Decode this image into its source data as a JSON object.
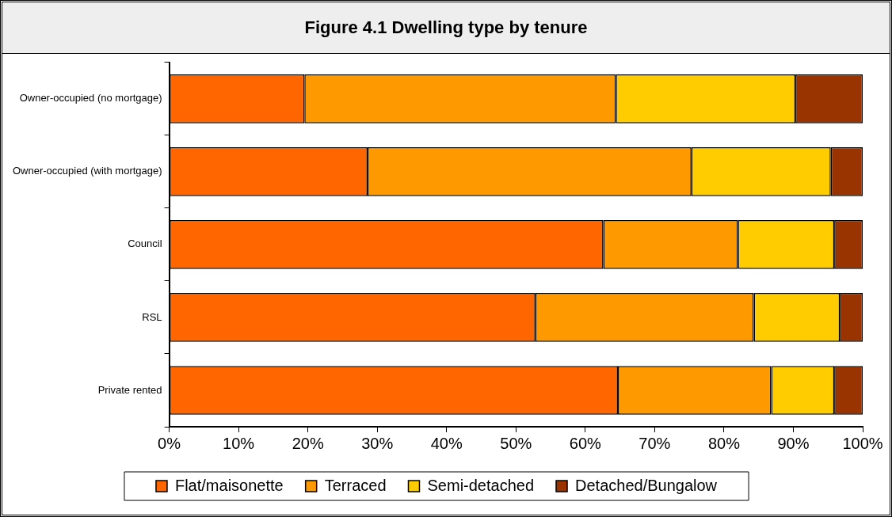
{
  "chart_data": {
    "type": "bar",
    "orientation": "horizontal",
    "stacked": true,
    "title": "Figure 4.1 Dwelling type by tenure",
    "categories": [
      "Owner-occupied (no mortgage)",
      "Owner-occupied (with mortgage)",
      "Council",
      "RSL",
      "Private rented"
    ],
    "series": [
      {
        "name": "Flat/maisonette",
        "color": "#ff6600",
        "values": [
          19.5,
          28.6,
          62.6,
          52.8,
          64.7
        ]
      },
      {
        "name": "Terraced",
        "color": "#ff9900",
        "values": [
          44.9,
          46.7,
          19.4,
          31.5,
          22.1
        ]
      },
      {
        "name": "Semi-detached",
        "color": "#ffcc00",
        "values": [
          25.9,
          20.1,
          13.9,
          12.4,
          9.1
        ]
      },
      {
        "name": "Detached/Bungalow",
        "color": "#993300",
        "values": [
          9.7,
          4.6,
          4.1,
          3.3,
          4.1
        ]
      }
    ],
    "xlim": [
      0,
      100
    ],
    "xticks": [
      {
        "value": 0,
        "label": "0%"
      },
      {
        "value": 10,
        "label": "10%"
      },
      {
        "value": 20,
        "label": "20%"
      },
      {
        "value": 30,
        "label": "30%"
      },
      {
        "value": 40,
        "label": "40%"
      },
      {
        "value": 50,
        "label": "50%"
      },
      {
        "value": 60,
        "label": "60%"
      },
      {
        "value": 70,
        "label": "70%"
      },
      {
        "value": 80,
        "label": "80%"
      },
      {
        "value": 90,
        "label": "90%"
      },
      {
        "value": 100,
        "label": "100%"
      }
    ],
    "grid": false,
    "legend": "bottom"
  }
}
